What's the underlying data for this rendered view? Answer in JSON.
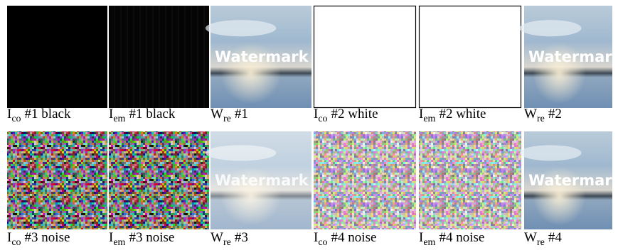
{
  "figure": {
    "watermark_text": "Watermark",
    "rows": [
      [
        {
          "symbol": "I",
          "subscript": "co",
          "label": "#1 black"
        },
        {
          "symbol": "I",
          "subscript": "em",
          "label": "#1 black"
        },
        {
          "symbol": "W",
          "subscript": "re",
          "label": "#1"
        },
        {
          "symbol": "I",
          "subscript": "co",
          "label": "#2 white"
        },
        {
          "symbol": "I",
          "subscript": "em",
          "label": "#2 white"
        },
        {
          "symbol": "W",
          "subscript": "re",
          "label": "#2"
        }
      ],
      [
        {
          "symbol": "I",
          "subscript": "co",
          "label": "#3 noise"
        },
        {
          "symbol": "I",
          "subscript": "em",
          "label": "#3 noise"
        },
        {
          "symbol": "W",
          "subscript": "re",
          "label": "#3"
        },
        {
          "symbol": "I",
          "subscript": "co",
          "label": "#4 noise"
        },
        {
          "symbol": "I",
          "subscript": "em",
          "label": "#4 noise"
        },
        {
          "symbol": "W",
          "subscript": "re",
          "label": "#4"
        }
      ]
    ]
  }
}
